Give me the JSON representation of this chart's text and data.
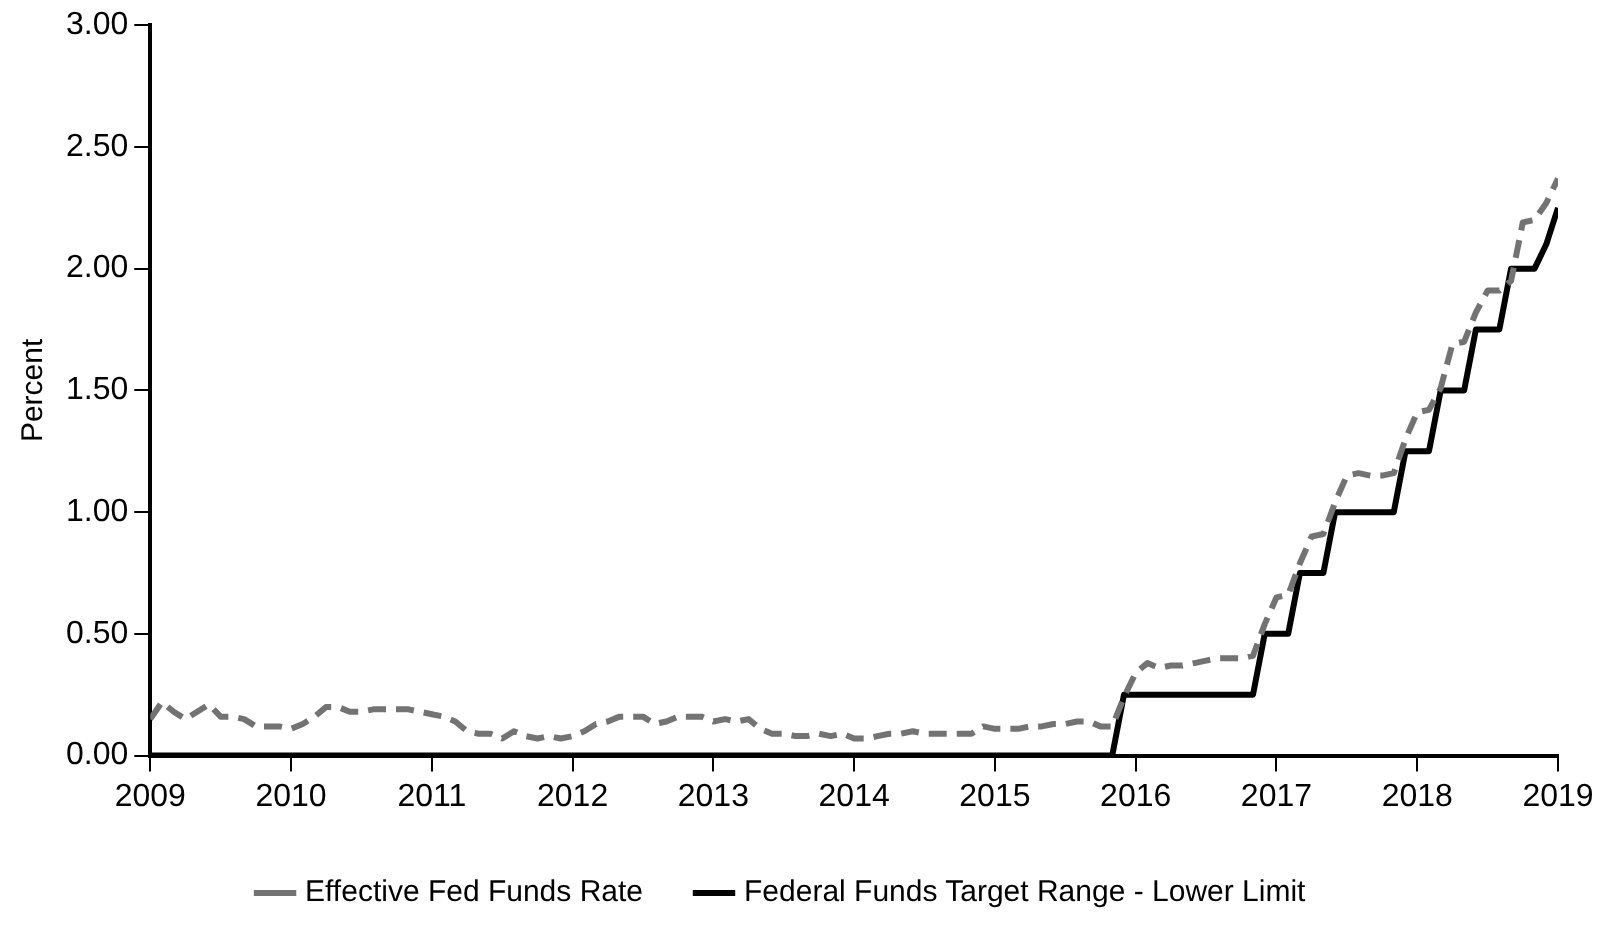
{
  "chart_data": {
    "type": "line",
    "ylabel": "Percent",
    "legend": "bottom",
    "grid": false,
    "marker": "none",
    "x": [
      "2009-01",
      "2009-02",
      "2009-03",
      "2009-04",
      "2009-05",
      "2009-06",
      "2009-07",
      "2009-08",
      "2009-09",
      "2009-10",
      "2009-11",
      "2009-12",
      "2010-01",
      "2010-02",
      "2010-03",
      "2010-04",
      "2010-05",
      "2010-06",
      "2010-07",
      "2010-08",
      "2010-09",
      "2010-10",
      "2010-11",
      "2010-12",
      "2011-01",
      "2011-02",
      "2011-03",
      "2011-04",
      "2011-05",
      "2011-06",
      "2011-07",
      "2011-08",
      "2011-09",
      "2011-10",
      "2011-11",
      "2011-12",
      "2012-01",
      "2012-02",
      "2012-03",
      "2012-04",
      "2012-05",
      "2012-06",
      "2012-07",
      "2012-08",
      "2012-09",
      "2012-10",
      "2012-11",
      "2012-12",
      "2013-01",
      "2013-02",
      "2013-03",
      "2013-04",
      "2013-05",
      "2013-06",
      "2013-07",
      "2013-08",
      "2013-09",
      "2013-10",
      "2013-11",
      "2013-12",
      "2014-01",
      "2014-02",
      "2014-03",
      "2014-04",
      "2014-05",
      "2014-06",
      "2014-07",
      "2014-08",
      "2014-09",
      "2014-10",
      "2014-11",
      "2014-12",
      "2015-01",
      "2015-02",
      "2015-03",
      "2015-04",
      "2015-05",
      "2015-06",
      "2015-07",
      "2015-08",
      "2015-09",
      "2015-10",
      "2015-11",
      "2015-12",
      "2016-01",
      "2016-02",
      "2016-03",
      "2016-04",
      "2016-05",
      "2016-06",
      "2016-07",
      "2016-08",
      "2016-09",
      "2016-10",
      "2016-11",
      "2016-12",
      "2017-01",
      "2017-02",
      "2017-03",
      "2017-04",
      "2017-05",
      "2017-06",
      "2017-07",
      "2017-08",
      "2017-09",
      "2017-10",
      "2017-11",
      "2017-12",
      "2018-01",
      "2018-02",
      "2018-03",
      "2018-04",
      "2018-05",
      "2018-06",
      "2018-07",
      "2018-08",
      "2018-09",
      "2018-10",
      "2018-11",
      "2018-12",
      "2019-01"
    ],
    "xlim": [
      "2009",
      "2019"
    ],
    "xticks": [
      "2009",
      "2010",
      "2011",
      "2012",
      "2013",
      "2014",
      "2015",
      "2016",
      "2017",
      "2018",
      "2019"
    ],
    "ylim": [
      0,
      3
    ],
    "yticks": [
      {
        "value": 0,
        "label": "0.00"
      },
      {
        "value": 0.5,
        "label": "0.50"
      },
      {
        "value": 1,
        "label": "1.00"
      },
      {
        "value": 1.5,
        "label": "1.50"
      },
      {
        "value": 2,
        "label": "2.00"
      },
      {
        "value": 2.5,
        "label": "2.50"
      },
      {
        "value": 3,
        "label": "3.00"
      }
    ],
    "series": [
      {
        "name": "Effective Fed Funds Rate",
        "color": "#737373",
        "line_style": "dashed",
        "values": [
          0.15,
          0.22,
          0.18,
          0.15,
          0.18,
          0.21,
          0.16,
          0.16,
          0.15,
          0.12,
          0.12,
          0.12,
          0.11,
          0.13,
          0.16,
          0.2,
          0.2,
          0.18,
          0.18,
          0.19,
          0.19,
          0.19,
          0.19,
          0.18,
          0.17,
          0.16,
          0.14,
          0.1,
          0.09,
          0.09,
          0.07,
          0.1,
          0.08,
          0.07,
          0.08,
          0.07,
          0.08,
          0.1,
          0.13,
          0.14,
          0.16,
          0.16,
          0.16,
          0.13,
          0.14,
          0.16,
          0.16,
          0.16,
          0.14,
          0.15,
          0.14,
          0.15,
          0.11,
          0.09,
          0.09,
          0.08,
          0.08,
          0.09,
          0.08,
          0.09,
          0.07,
          0.07,
          0.08,
          0.09,
          0.09,
          0.1,
          0.09,
          0.09,
          0.09,
          0.09,
          0.09,
          0.12,
          0.11,
          0.11,
          0.11,
          0.12,
          0.12,
          0.13,
          0.13,
          0.14,
          0.14,
          0.12,
          0.12,
          0.24,
          0.34,
          0.38,
          0.36,
          0.37,
          0.37,
          0.38,
          0.39,
          0.4,
          0.4,
          0.4,
          0.41,
          0.54,
          0.65,
          0.66,
          0.79,
          0.9,
          0.91,
          1.04,
          1.15,
          1.16,
          1.15,
          1.15,
          1.16,
          1.3,
          1.41,
          1.42,
          1.51,
          1.69,
          1.7,
          1.82,
          1.91,
          1.91,
          1.95,
          2.19,
          2.2,
          2.27,
          2.37
        ]
      },
      {
        "name": "Federal Funds Target Range - Lower Limit",
        "color": "#000000",
        "line_style": "solid",
        "x": [
          "2009-01",
          "2015-11",
          "2015-12",
          "2016-11",
          "2016-12",
          "2017-02",
          "2017-03",
          "2017-05",
          "2017-06",
          "2017-11",
          "2017-12",
          "2018-02",
          "2018-03",
          "2018-05",
          "2018-06",
          "2018-08",
          "2018-09",
          "2018-11",
          "2018-12",
          "2019-01"
        ],
        "values": [
          0,
          0,
          0.25,
          0.25,
          0.5,
          0.5,
          0.75,
          0.75,
          1,
          1,
          1.25,
          1.25,
          1.5,
          1.5,
          1.75,
          1.75,
          2,
          2,
          2.1,
          2.25
        ]
      }
    ]
  }
}
